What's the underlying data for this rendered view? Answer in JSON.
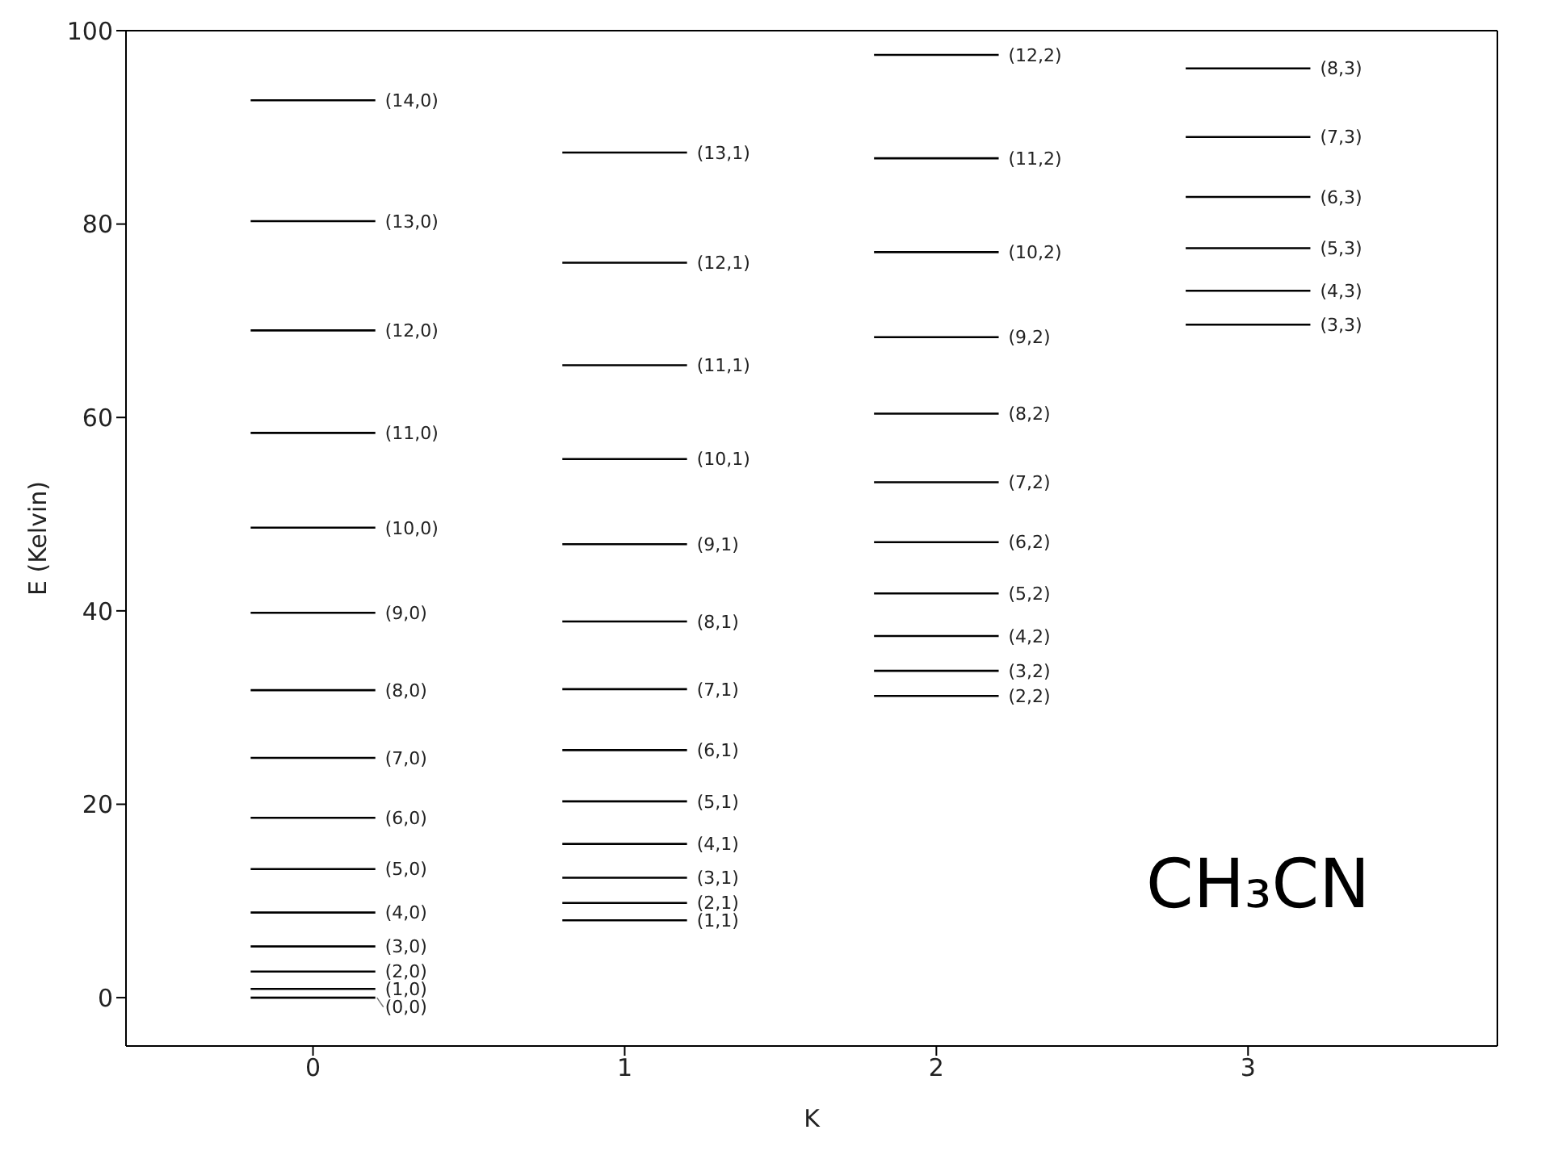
{
  "chart_data": {
    "type": "line",
    "marker": "none",
    "xlabel": "K",
    "ylabel": "E (Kelvin)",
    "xlim": [
      -0.6,
      3.8
    ],
    "xticks": [
      0,
      1,
      2,
      3
    ],
    "ylim": [
      -5,
      100
    ],
    "yticks": [
      0,
      20,
      40,
      60,
      80,
      100
    ],
    "grid": false,
    "annotations": [
      "CH₃CN",
      {
        "text": "(0,0)",
        "x": 0.2,
        "y": 0
      },
      {
        "text": "(1,0)",
        "x": 0.2,
        "y": 0.9
      },
      {
        "text": "(2,0)",
        "x": 0.2,
        "y": 2.7
      },
      {
        "text": "(3,0)",
        "x": 0.2,
        "y": 5.3
      },
      {
        "text": "(4,0)",
        "x": 0.2,
        "y": 8.8
      },
      {
        "text": "(5,0)",
        "x": 0.2,
        "y": 13.3
      },
      {
        "text": "(6,0)",
        "x": 0.2,
        "y": 18.6
      },
      {
        "text": "(7,0)",
        "x": 0.2,
        "y": 24.8
      },
      {
        "text": "(8,0)",
        "x": 0.2,
        "y": 31.8
      },
      {
        "text": "(9,0)",
        "x": 0.2,
        "y": 39.8
      },
      {
        "text": "(10,0)",
        "x": 0.2,
        "y": 48.6
      },
      {
        "text": "(11,0)",
        "x": 0.2,
        "y": 58.4
      },
      {
        "text": "(12,0)",
        "x": 0.2,
        "y": 69.0
      },
      {
        "text": "(13,0)",
        "x": 0.2,
        "y": 80.3
      },
      {
        "text": "(14,0)",
        "x": 0.2,
        "y": 92.8
      },
      {
        "text": "(1,1)",
        "x": 1.2,
        "y": 8.0
      },
      {
        "text": "(2,1)",
        "x": 1.2,
        "y": 9.8
      },
      {
        "text": "(3,1)",
        "x": 1.2,
        "y": 12.4
      },
      {
        "text": "(4,1)",
        "x": 1.2,
        "y": 15.9
      },
      {
        "text": "(5,1)",
        "x": 1.2,
        "y": 20.3
      },
      {
        "text": "(6,1)",
        "x": 1.2,
        "y": 25.6
      },
      {
        "text": "(7,1)",
        "x": 1.2,
        "y": 31.9
      },
      {
        "text": "(8,1)",
        "x": 1.2,
        "y": 38.9
      },
      {
        "text": "(9,1)",
        "x": 1.2,
        "y": 46.9
      },
      {
        "text": "(10,1)",
        "x": 1.2,
        "y": 55.7
      },
      {
        "text": "(11,1)",
        "x": 1.2,
        "y": 65.4
      },
      {
        "text": "(12,1)",
        "x": 1.2,
        "y": 76.0
      },
      {
        "text": "(13,1)",
        "x": 1.2,
        "y": 87.4
      },
      {
        "text": "(2,2)",
        "x": 2.2,
        "y": 31.2
      },
      {
        "text": "(3,2)",
        "x": 2.2,
        "y": 33.8
      },
      {
        "text": "(4,2)",
        "x": 2.2,
        "y": 37.4
      },
      {
        "text": "(5,2)",
        "x": 2.2,
        "y": 41.8
      },
      {
        "text": "(6,2)",
        "x": 2.2,
        "y": 47.1
      },
      {
        "text": "(7,2)",
        "x": 2.2,
        "y": 53.3
      },
      {
        "text": "(8,2)",
        "x": 2.2,
        "y": 60.4
      },
      {
        "text": "(9,2)",
        "x": 2.2,
        "y": 68.3
      },
      {
        "text": "(10,2)",
        "x": 2.2,
        "y": 77.1
      },
      {
        "text": "(11,2)",
        "x": 2.2,
        "y": 86.8
      },
      {
        "text": "(12,2)",
        "x": 2.2,
        "y": 97.5
      },
      {
        "text": "(3,3)",
        "x": 3.2,
        "y": 69.6
      },
      {
        "text": "(4,3)",
        "x": 3.2,
        "y": 73.1
      },
      {
        "text": "(5,3)",
        "x": 3.2,
        "y": 77.5
      },
      {
        "text": "(6,3)",
        "x": 3.2,
        "y": 82.8
      },
      {
        "text": "(7,3)",
        "x": 3.2,
        "y": 89.0
      },
      {
        "text": "(8,3)",
        "x": 3.2,
        "y": 96.1
      }
    ],
    "series": [
      {
        "color": "#000000",
        "x": [
          -0.2,
          0.2
        ],
        "values": [
          0,
          0
        ]
      },
      {
        "color": "#000000",
        "x": [
          -0.2,
          0.2
        ],
        "values": [
          0.9,
          0.9
        ]
      },
      {
        "color": "#000000",
        "x": [
          -0.2,
          0.2
        ],
        "values": [
          2.7,
          2.7
        ]
      },
      {
        "color": "#000000",
        "x": [
          -0.2,
          0.2
        ],
        "values": [
          5.3,
          5.3
        ]
      },
      {
        "color": "#000000",
        "x": [
          -0.2,
          0.2
        ],
        "values": [
          8.8,
          8.8
        ]
      },
      {
        "color": "#000000",
        "x": [
          -0.2,
          0.2
        ],
        "values": [
          13.3,
          13.3
        ]
      },
      {
        "color": "#000000",
        "x": [
          -0.2,
          0.2
        ],
        "values": [
          18.6,
          18.6
        ]
      },
      {
        "color": "#000000",
        "x": [
          -0.2,
          0.2
        ],
        "values": [
          24.8,
          24.8
        ]
      },
      {
        "color": "#000000",
        "x": [
          -0.2,
          0.2
        ],
        "values": [
          31.8,
          31.8
        ]
      },
      {
        "color": "#000000",
        "x": [
          -0.2,
          0.2
        ],
        "values": [
          39.8,
          39.8
        ]
      },
      {
        "color": "#000000",
        "x": [
          -0.2,
          0.2
        ],
        "values": [
          48.6,
          48.6
        ]
      },
      {
        "color": "#000000",
        "x": [
          -0.2,
          0.2
        ],
        "values": [
          58.4,
          58.4
        ]
      },
      {
        "color": "#000000",
        "x": [
          -0.2,
          0.2
        ],
        "values": [
          69.0,
          69.0
        ]
      },
      {
        "color": "#000000",
        "x": [
          -0.2,
          0.2
        ],
        "values": [
          80.3,
          80.3
        ]
      },
      {
        "color": "#000000",
        "x": [
          -0.2,
          0.2
        ],
        "values": [
          92.8,
          92.8
        ]
      },
      {
        "color": "#000000",
        "x": [
          0.8,
          1.2
        ],
        "values": [
          8.0,
          8.0
        ]
      },
      {
        "color": "#000000",
        "x": [
          0.8,
          1.2
        ],
        "values": [
          9.8,
          9.8
        ]
      },
      {
        "color": "#000000",
        "x": [
          0.8,
          1.2
        ],
        "values": [
          12.4,
          12.4
        ]
      },
      {
        "color": "#000000",
        "x": [
          0.8,
          1.2
        ],
        "values": [
          15.9,
          15.9
        ]
      },
      {
        "color": "#000000",
        "x": [
          0.8,
          1.2
        ],
        "values": [
          20.3,
          20.3
        ]
      },
      {
        "color": "#000000",
        "x": [
          0.8,
          1.2
        ],
        "values": [
          25.6,
          25.6
        ]
      },
      {
        "color": "#000000",
        "x": [
          0.8,
          1.2
        ],
        "values": [
          31.9,
          31.9
        ]
      },
      {
        "color": "#000000",
        "x": [
          0.8,
          1.2
        ],
        "values": [
          38.9,
          38.9
        ]
      },
      {
        "color": "#000000",
        "x": [
          0.8,
          1.2
        ],
        "values": [
          46.9,
          46.9
        ]
      },
      {
        "color": "#000000",
        "x": [
          0.8,
          1.2
        ],
        "values": [
          55.7,
          55.7
        ]
      },
      {
        "color": "#000000",
        "x": [
          0.8,
          1.2
        ],
        "values": [
          65.4,
          65.4
        ]
      },
      {
        "color": "#000000",
        "x": [
          0.8,
          1.2
        ],
        "values": [
          76.0,
          76.0
        ]
      },
      {
        "color": "#000000",
        "x": [
          0.8,
          1.2
        ],
        "values": [
          87.4,
          87.4
        ]
      },
      {
        "color": "#000000",
        "x": [
          1.8,
          2.2
        ],
        "values": [
          31.2,
          31.2
        ]
      },
      {
        "color": "#000000",
        "x": [
          1.8,
          2.2
        ],
        "values": [
          33.8,
          33.8
        ]
      },
      {
        "color": "#000000",
        "x": [
          1.8,
          2.2
        ],
        "values": [
          37.4,
          37.4
        ]
      },
      {
        "color": "#000000",
        "x": [
          1.8,
          2.2
        ],
        "values": [
          41.8,
          41.8
        ]
      },
      {
        "color": "#000000",
        "x": [
          1.8,
          2.2
        ],
        "values": [
          47.1,
          47.1
        ]
      },
      {
        "color": "#000000",
        "x": [
          1.8,
          2.2
        ],
        "values": [
          53.3,
          53.3
        ]
      },
      {
        "color": "#000000",
        "x": [
          1.8,
          2.2
        ],
        "values": [
          60.4,
          60.4
        ]
      },
      {
        "color": "#000000",
        "x": [
          1.8,
          2.2
        ],
        "values": [
          68.3,
          68.3
        ]
      },
      {
        "color": "#000000",
        "x": [
          1.8,
          2.2
        ],
        "values": [
          77.1,
          77.1
        ]
      },
      {
        "color": "#000000",
        "x": [
          1.8,
          2.2
        ],
        "values": [
          86.8,
          86.8
        ]
      },
      {
        "color": "#000000",
        "x": [
          1.8,
          2.2
        ],
        "values": [
          97.5,
          97.5
        ]
      },
      {
        "color": "#000000",
        "x": [
          2.8,
          3.2
        ],
        "values": [
          69.6,
          69.6
        ]
      },
      {
        "color": "#000000",
        "x": [
          2.8,
          3.2
        ],
        "values": [
          73.1,
          73.1
        ]
      },
      {
        "color": "#000000",
        "x": [
          2.8,
          3.2
        ],
        "values": [
          77.5,
          77.5
        ]
      },
      {
        "color": "#000000",
        "x": [
          2.8,
          3.2
        ],
        "values": [
          82.8,
          82.8
        ]
      },
      {
        "color": "#000000",
        "x": [
          2.8,
          3.2
        ],
        "values": [
          89.0,
          89.0
        ]
      },
      {
        "color": "#000000",
        "x": [
          2.8,
          3.2
        ],
        "values": [
          96.1,
          96.1
        ]
      }
    ]
  }
}
